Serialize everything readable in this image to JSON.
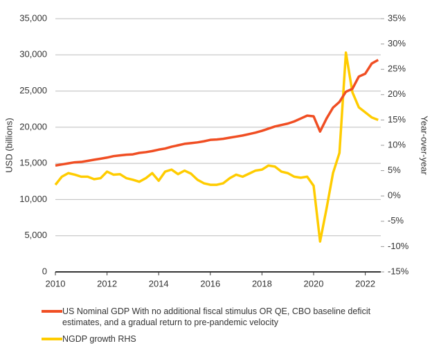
{
  "chart_data": {
    "type": "line",
    "y_label": "USD (billions)",
    "y2_label": "Year-over-year",
    "x": [
      2010,
      2010.25,
      2010.5,
      2010.75,
      2011,
      2011.25,
      2011.5,
      2011.75,
      2012,
      2012.25,
      2012.5,
      2012.75,
      2013,
      2013.25,
      2013.5,
      2013.75,
      2014,
      2014.25,
      2014.5,
      2014.75,
      2015,
      2015.25,
      2015.5,
      2015.75,
      2016,
      2016.25,
      2016.5,
      2016.75,
      2017,
      2017.25,
      2017.5,
      2017.75,
      2018,
      2018.25,
      2018.5,
      2018.75,
      2019,
      2019.25,
      2019.5,
      2019.75,
      2020,
      2020.25,
      2020.5,
      2020.75,
      2021,
      2021.25,
      2021.5,
      2021.75,
      2022,
      2022.25,
      2022.5
    ],
    "series": [
      {
        "name": "US Nominal GDP With no additional fiscal stimulus OR QE, CBO baseline deficit estimates, and a gradual return to pre-pandemic velocity",
        "color": "#f04e23",
        "values": [
          14700,
          14850,
          15000,
          15150,
          15200,
          15350,
          15500,
          15650,
          15800,
          16000,
          16100,
          16200,
          16250,
          16450,
          16550,
          16700,
          16900,
          17050,
          17300,
          17500,
          17700,
          17800,
          17900,
          18050,
          18250,
          18300,
          18400,
          18550,
          18700,
          18850,
          19050,
          19250,
          19500,
          19800,
          20100,
          20300,
          20500,
          20800,
          21200,
          21600,
          21500,
          19400,
          21200,
          22700,
          23500,
          24900,
          25300,
          27000,
          27400,
          28800,
          29300
        ]
      },
      {
        "name": "NGDP growth RHS",
        "color": "#ffcc00",
        "axis": "y2",
        "values": [
          2.2,
          3.8,
          4.5,
          4.2,
          3.8,
          3.8,
          3.3,
          3.5,
          4.8,
          4.2,
          4.3,
          3.5,
          3.2,
          2.8,
          3.5,
          4.5,
          3.0,
          4.8,
          5.2,
          4.3,
          5.0,
          4.4,
          3.2,
          2.5,
          2.2,
          2.2,
          2.5,
          3.5,
          4.2,
          3.8,
          4.4,
          5.0,
          5.2,
          6.0,
          5.8,
          4.8,
          4.5,
          3.8,
          3.6,
          3.8,
          2.0,
          -9.0,
          -2.5,
          4.5,
          8.5,
          28.3,
          20.5,
          17.5,
          16.5,
          15.5,
          15.0
        ]
      }
    ],
    "xlim": [
      2010,
      2022.6
    ],
    "xticks": [
      2010,
      2012,
      2014,
      2016,
      2018,
      2020,
      2022
    ],
    "ylim": [
      0,
      35000
    ],
    "yticks": [
      0,
      {
        "value": 5000,
        "label": "5,000"
      },
      {
        "value": 10000,
        "label": "10,000"
      },
      {
        "value": 15000,
        "label": "15,000"
      },
      {
        "value": 20000,
        "label": "20,000"
      },
      {
        "value": 25000,
        "label": "25,000"
      },
      {
        "value": 30000,
        "label": "30,000"
      },
      {
        "value": 35000,
        "label": "35,000"
      }
    ],
    "y2lim": [
      -15,
      35
    ],
    "y2ticks": [
      {
        "value": -15,
        "label": "-15%"
      },
      {
        "value": -10,
        "label": "-10%"
      },
      {
        "value": -5,
        "label": "-5%"
      },
      {
        "value": 0,
        "label": "0%"
      },
      {
        "value": 5,
        "label": "5%"
      },
      {
        "value": 10,
        "label": "10%"
      },
      {
        "value": 15,
        "label": "15%"
      },
      {
        "value": 20,
        "label": "20%"
      },
      {
        "value": 25,
        "label": "25%"
      },
      {
        "value": 30,
        "label": "30%"
      },
      {
        "value": 35,
        "label": "35%"
      }
    ],
    "grid": true
  }
}
